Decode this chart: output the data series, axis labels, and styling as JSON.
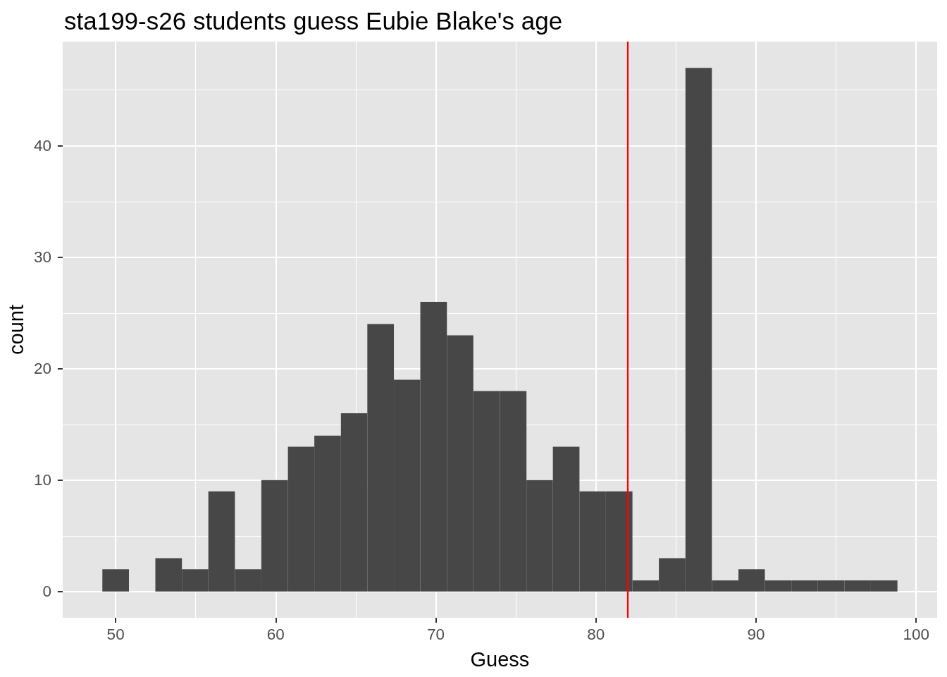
{
  "chart_data": {
    "type": "histogram",
    "title": "sta199-s26 students guess Eubie Blake's age",
    "xlabel": "Guess",
    "ylabel": "count",
    "bins": [
      49.17,
      50.83,
      52.48,
      54.14,
      55.79,
      57.45,
      59.1,
      60.76,
      62.41,
      64.07,
      65.72,
      67.38,
      69.03,
      70.69,
      72.34,
      74.0,
      75.66,
      77.31,
      78.97,
      80.62,
      82.28,
      83.93,
      85.59,
      87.24,
      88.9,
      90.55,
      92.21,
      93.86,
      95.52,
      97.17,
      98.83
    ],
    "values": [
      2,
      0,
      3,
      2,
      9,
      2,
      10,
      13,
      14,
      16,
      24,
      19,
      26,
      23,
      18,
      18,
      10,
      13,
      9,
      9,
      1,
      3,
      47,
      1,
      2,
      1,
      1,
      1,
      1,
      1
    ],
    "color": "#474747",
    "xlim": [
      46.69,
      101.31
    ],
    "ylim": [
      -2.35,
      49.35
    ],
    "xticks": [
      50,
      60,
      70,
      80,
      90,
      100
    ],
    "yticks": [
      0,
      10,
      20,
      30,
      40
    ],
    "grid": true,
    "ref_lines": [
      {
        "axis": "x",
        "value": 82,
        "color": "#ff0000"
      }
    ]
  }
}
